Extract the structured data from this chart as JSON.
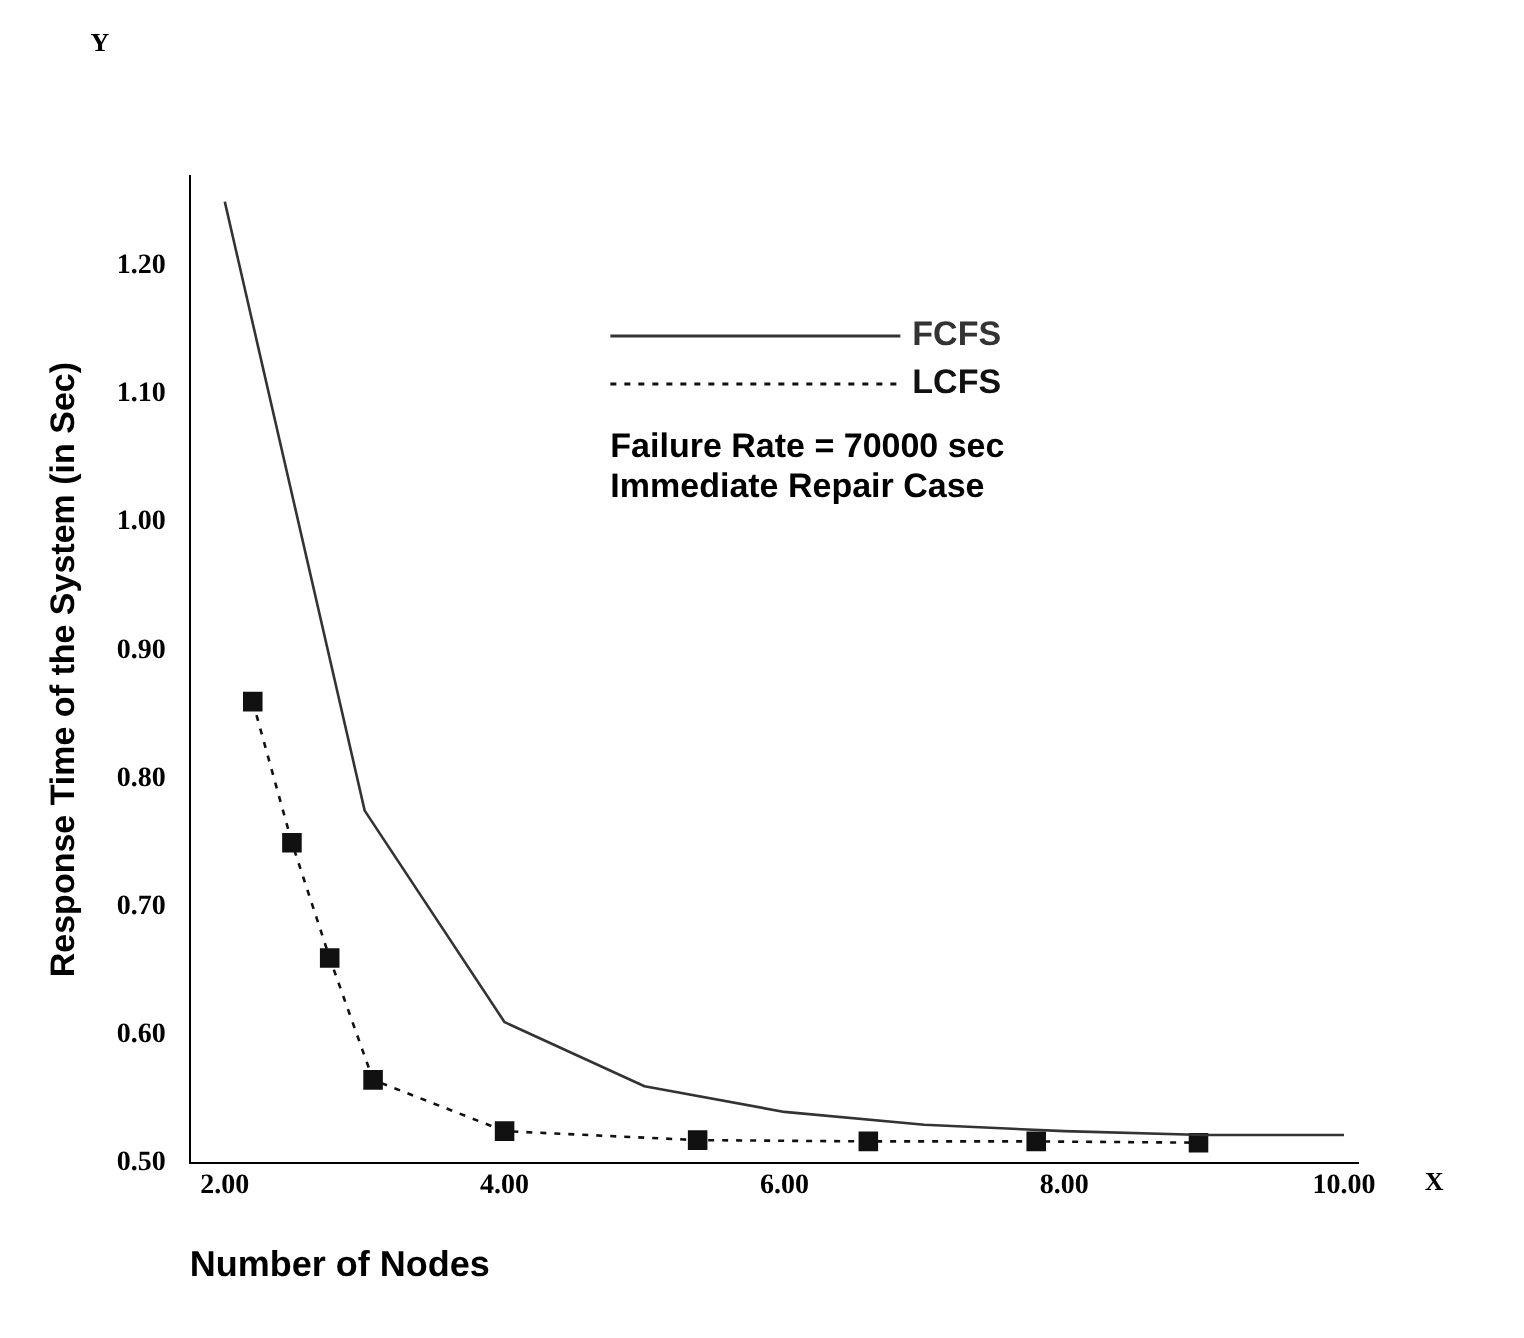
{
  "chart_data": {
    "type": "line",
    "xlabel": "Number of Nodes",
    "ylabel": "Response Time of the System (in Sec)",
    "xlim": [
      1.75,
      10.1
    ],
    "ylim": [
      0.5,
      1.27
    ],
    "xticks": [
      {
        "value": 2,
        "label": "2.00"
      },
      {
        "value": 4,
        "label": "4.00"
      },
      {
        "value": 6,
        "label": "6.00"
      },
      {
        "value": 8,
        "label": "8.00"
      },
      {
        "value": 10,
        "label": "10.00"
      }
    ],
    "yticks": [
      {
        "value": 0.5,
        "label": "0.50"
      },
      {
        "value": 0.6,
        "label": "0.60"
      },
      {
        "value": 0.7,
        "label": "0.70"
      },
      {
        "value": 0.8,
        "label": "0.80"
      },
      {
        "value": 0.9,
        "label": "0.90"
      },
      {
        "value": 1.0,
        "label": "1.00"
      },
      {
        "value": 1.1,
        "label": "1.10"
      },
      {
        "value": 1.2,
        "label": "1.20"
      }
    ],
    "grid": false,
    "legend": "top right",
    "series": [
      {
        "name": "FCFS",
        "color": "#333333",
        "line_style": "solid",
        "marker": "none",
        "x": [
          2,
          3,
          4,
          5,
          6,
          7,
          8,
          9,
          10
        ],
        "values": [
          1.25,
          0.775,
          0.61,
          0.56,
          0.54,
          0.53,
          0.525,
          0.522,
          0.522
        ]
      },
      {
        "name": "LCFS",
        "color": "#111111",
        "line_style": "dotted",
        "marker": "square",
        "x": [
          2.2,
          2.48,
          2.75,
          3.06,
          4.0,
          5.38,
          6.6,
          7.8,
          8.96
        ],
        "values": [
          0.86,
          0.75,
          0.66,
          0.565,
          0.525,
          0.518,
          0.517,
          0.517,
          0.516
        ]
      }
    ],
    "annotations": [
      "Failure Rate = 70000 sec",
      "Immediate Repair Case",
      "Y",
      "X"
    ]
  }
}
